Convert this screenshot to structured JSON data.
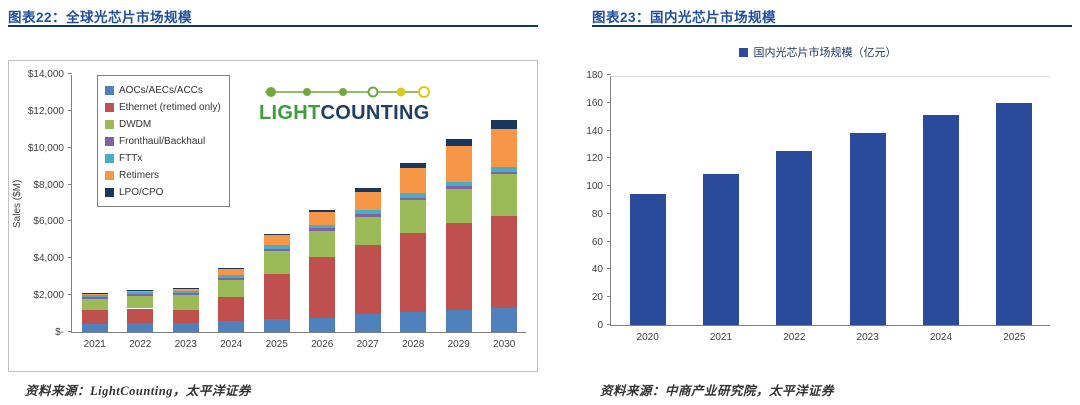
{
  "left_panel": {
    "title": "图表22：全球光芯片市场规模",
    "source": "资料来源：LightCounting，太平洋证券",
    "logo": {
      "text1": "LIGHT",
      "text2": "COUNTING",
      "color1": "#3C9E3C",
      "color2": "#1F4064"
    }
  },
  "right_panel": {
    "title": "图表23：国内光芯片市场规模",
    "legend_label": "国内光芯片市场规模（亿元）",
    "source": "资料来源：中商产业研究院，太平洋证券"
  },
  "chart_data": [
    {
      "type": "bar",
      "stacked": true,
      "title": "图表22：全球光芯片市场规模",
      "ylabel": "Sales ($M)",
      "categories": [
        "2021",
        "2022",
        "2023",
        "2024",
        "2025",
        "2026",
        "2027",
        "2028",
        "2029",
        "2030"
      ],
      "series": [
        {
          "name": "AOCs/AECs/ACCs",
          "color": "#4F81BD",
          "values": [
            450,
            480,
            500,
            600,
            700,
            750,
            1000,
            1100,
            1200,
            1300
          ]
        },
        {
          "name": "Ethernet (retimed only)",
          "color": "#C0504D",
          "values": [
            750,
            800,
            700,
            1300,
            2450,
            3300,
            3700,
            4300,
            4700,
            5000
          ]
        },
        {
          "name": "DWDM",
          "color": "#9BBB59",
          "values": [
            600,
            680,
            800,
            950,
            1250,
            1450,
            1550,
            1750,
            1850,
            2250
          ]
        },
        {
          "name": "Fronthaul/Backhaul",
          "color": "#8064A2",
          "values": [
            100,
            100,
            100,
            100,
            120,
            120,
            150,
            150,
            150,
            150
          ]
        },
        {
          "name": "FTTx",
          "color": "#4BACC6",
          "values": [
            100,
            110,
            120,
            150,
            180,
            200,
            220,
            250,
            250,
            250
          ]
        },
        {
          "name": "Retimers",
          "color": "#F79646",
          "values": [
            80,
            100,
            130,
            350,
            550,
            680,
            1000,
            1350,
            1950,
            2050
          ]
        },
        {
          "name": "LPO/CPO",
          "color": "#17375E",
          "values": [
            20,
            30,
            50,
            50,
            50,
            100,
            180,
            300,
            400,
            500
          ]
        }
      ],
      "ylim": [
        0,
        14000
      ],
      "ytick_step": 2000,
      "ytick_labels": [
        "$-",
        "$2,000",
        "$4,000",
        "$6,000",
        "$8,000",
        "$10,000",
        "$12,000",
        "$14,000"
      ],
      "legend_position": "upper-left",
      "grid": false
    },
    {
      "type": "bar",
      "title": "图表23：国内光芯片市场规模",
      "legend": "国内光芯片市场规模（亿元）",
      "categories": [
        "2020",
        "2021",
        "2022",
        "2023",
        "2024",
        "2025"
      ],
      "values": [
        94,
        109,
        125,
        138,
        151,
        160
      ],
      "bar_color": "#2A4B9B",
      "ylim": [
        0,
        180
      ],
      "ytick_step": 20,
      "ytick_labels": [
        "0",
        "20",
        "40",
        "60",
        "80",
        "100",
        "120",
        "140",
        "160",
        "180"
      ],
      "legend_position": "top",
      "grid": false
    }
  ]
}
